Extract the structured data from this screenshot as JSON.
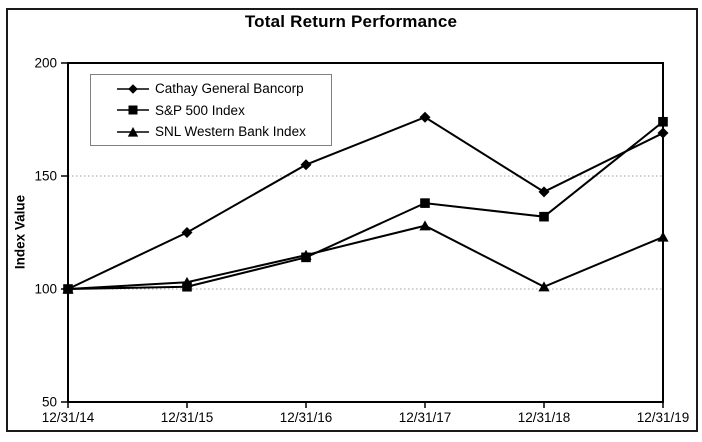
{
  "chart": {
    "title": "Total Return Performance",
    "y_axis_label": "Index Value"
  },
  "chart_data": {
    "type": "line",
    "title": "Total Return Performance",
    "xlabel": "",
    "ylabel": "Index Value",
    "categories": [
      "12/31/14",
      "12/31/15",
      "12/31/16",
      "12/31/17",
      "12/31/18",
      "12/31/19"
    ],
    "series": [
      {
        "name": "Cathay General Bancorp",
        "marker": "diamond",
        "values": [
          100,
          125,
          155,
          176,
          143,
          169
        ]
      },
      {
        "name": "S&P 500 Index",
        "marker": "square",
        "values": [
          100,
          101,
          114,
          138,
          132,
          174
        ]
      },
      {
        "name": "SNL Western Bank Index",
        "marker": "triangle",
        "values": [
          100,
          103,
          115,
          128,
          101,
          123
        ]
      }
    ],
    "ylim": [
      50,
      200
    ],
    "yticks": [
      50,
      100,
      150,
      200
    ],
    "gridlines_at": [
      100,
      150
    ],
    "grid_style": "dotted",
    "legend_position": "top-left",
    "colors": {
      "line": "#000000",
      "marker": "#000000",
      "frame": "#000000",
      "grid": "#a0a0a0",
      "legend_border": "#808080",
      "background": "#ffffff",
      "text": "#000000"
    }
  }
}
